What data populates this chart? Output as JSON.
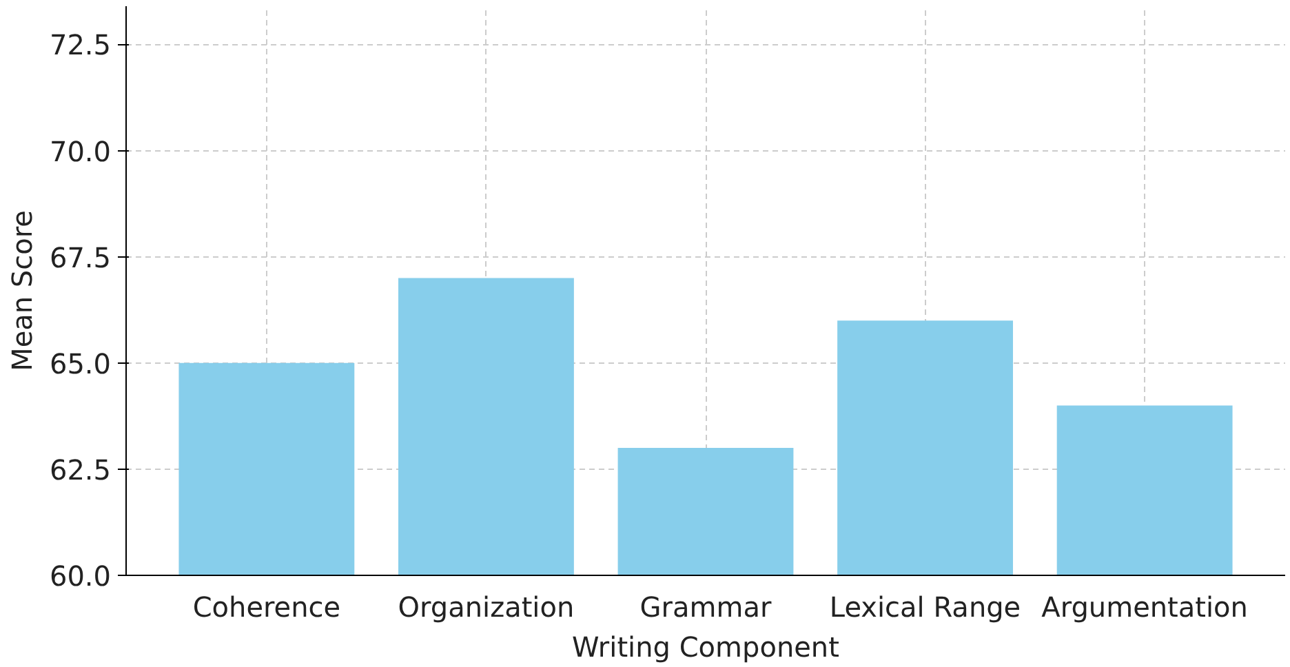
{
  "chart_data": {
    "type": "bar",
    "xlabel": "Writing Component",
    "ylabel": "Mean Score",
    "categories": [
      "Coherence",
      "Organization",
      "Grammar",
      "Lexical Range",
      "Argumentation"
    ],
    "values": [
      65,
      67,
      63,
      66,
      64
    ],
    "color": "#87ceeb",
    "ylim": [
      60,
      73.4
    ],
    "yticks": [
      {
        "value": 60,
        "label": "60.0"
      },
      {
        "value": 62.5,
        "label": "62.5"
      },
      {
        "value": 65,
        "label": "65.0"
      },
      {
        "value": 67.5,
        "label": "67.5"
      },
      {
        "value": 70,
        "label": "70.0"
      },
      {
        "value": 72.5,
        "label": "72.5"
      }
    ],
    "grid": true
  }
}
